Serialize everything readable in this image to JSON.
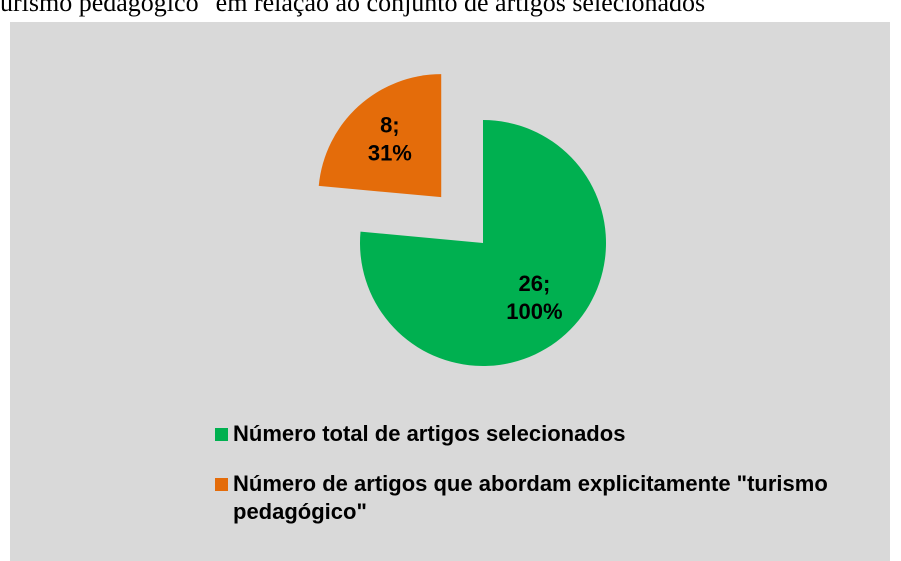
{
  "chart_data": {
    "type": "pie",
    "title": "urismo pedagógico\" em relação ao conjunto de artigos selecionados",
    "categories": [
      "Número total de artigos selecionados",
      "Número de artigos que abordam explicitamente \"turismo pedagógico\""
    ],
    "values": [
      26,
      8
    ],
    "value_labels": [
      "26;",
      "8;"
    ],
    "percent_labels": [
      "100%",
      "31%"
    ],
    "colors": [
      "#00b050",
      "#e46c0a"
    ],
    "exploded": [
      false,
      true
    ],
    "legend": "bottom"
  }
}
